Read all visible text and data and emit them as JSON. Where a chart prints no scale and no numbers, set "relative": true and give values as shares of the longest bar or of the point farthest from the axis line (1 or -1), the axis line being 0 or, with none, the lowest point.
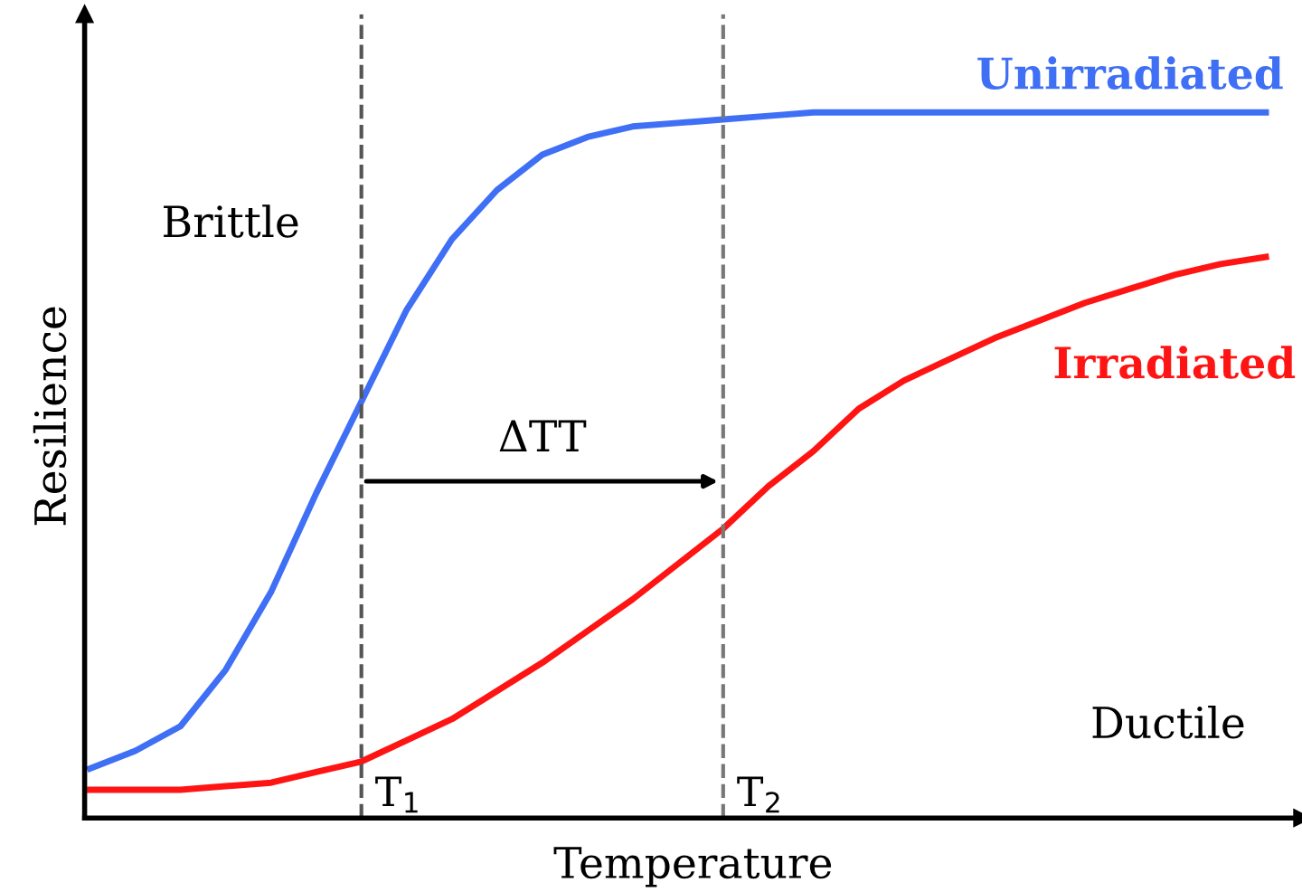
{
  "chart_data": {
    "type": "line",
    "relative": true,
    "xlabel": "Temperature",
    "ylabel": "Resilience",
    "legend": false,
    "categories": [
      null,
      null,
      null,
      null,
      null,
      null,
      null,
      null,
      null,
      null,
      null,
      null,
      null,
      null,
      null,
      null,
      null,
      null,
      null,
      null,
      null,
      null,
      null,
      null,
      null,
      null,
      null
    ],
    "series": [
      {
        "name": "Unirradiated",
        "color": "#3f6ff5",
        "values": [
          0.07,
          0.095,
          0.13,
          0.21,
          0.32,
          0.46,
          0.59,
          0.72,
          0.82,
          0.89,
          0.94,
          0.965,
          0.98,
          0.985,
          0.99,
          0.995,
          1,
          1,
          1,
          1,
          1,
          1,
          1,
          1,
          1,
          1,
          1
        ]
      },
      {
        "name": "Irradiated",
        "color": "#ff1414",
        "values": [
          0.04,
          0.04,
          0.04,
          0.045,
          0.05,
          0.065,
          0.08,
          0.11,
          0.14,
          0.18,
          0.22,
          0.265,
          0.31,
          0.36,
          0.41,
          0.47,
          0.52,
          0.58,
          0.62,
          0.65,
          0.68,
          0.705,
          0.73,
          0.75,
          0.77,
          0.785,
          0.795
        ]
      }
    ],
    "annotations": [
      "Brittle",
      "Ductile",
      "ΔTT",
      "T$_{1}$",
      "T$_{2}$"
    ]
  }
}
